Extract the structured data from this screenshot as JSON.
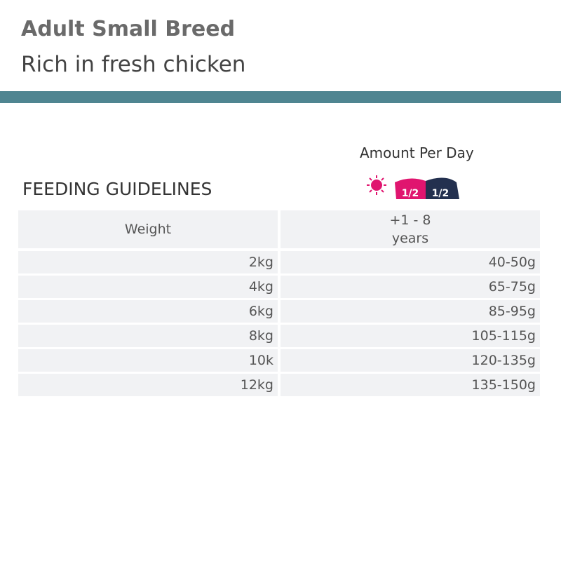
{
  "header": {
    "title": "Adult Small Breed",
    "subtitle": "Rich in fresh chicken"
  },
  "section_title": "FEEDING GUIDELINES",
  "amount_label": "Amount Per Day",
  "portion_icon": {
    "morning": "1/2",
    "evening": "1/2"
  },
  "table": {
    "header": [
      "Weight",
      "+1 - 8\nyears"
    ],
    "rows": [
      [
        "2kg",
        "40-50g"
      ],
      [
        "4kg",
        "65-75g"
      ],
      [
        "6kg",
        "85-95g"
      ],
      [
        "8kg",
        "105-115g"
      ],
      [
        "10k",
        "120-135g"
      ],
      [
        "12kg",
        "135-150g"
      ]
    ]
  }
}
